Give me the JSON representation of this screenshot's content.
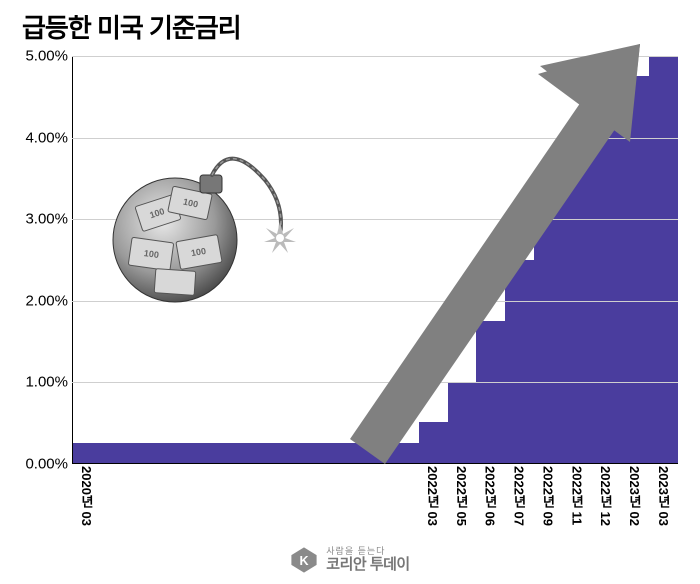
{
  "title": "급등한 미국 기준금리",
  "title_fontsize": 26,
  "title_color": "#000000",
  "chart": {
    "type": "bar",
    "background_color": "#ffffff",
    "bar_color": "#4a3d9e",
    "grid_color": "#cfcfcf",
    "axis_color": "#000000",
    "arrow_color": "#808080",
    "ylim": [
      0,
      5
    ],
    "yticks": [
      0,
      1,
      2,
      3,
      4,
      5
    ],
    "ytick_labels": [
      "0.00%",
      "1.00%",
      "2.00%",
      "3.00%",
      "4.00%",
      "5.00%"
    ],
    "ytick_fontsize": 15,
    "xtick_fontsize": 13,
    "bars": [
      {
        "label": "2020년 03",
        "value": 0.25,
        "show_label": true
      },
      {
        "label": "",
        "value": 0.25,
        "show_label": false
      },
      {
        "label": "",
        "value": 0.25,
        "show_label": false
      },
      {
        "label": "",
        "value": 0.25,
        "show_label": false
      },
      {
        "label": "",
        "value": 0.25,
        "show_label": false
      },
      {
        "label": "",
        "value": 0.25,
        "show_label": false
      },
      {
        "label": "",
        "value": 0.25,
        "show_label": false
      },
      {
        "label": "",
        "value": 0.25,
        "show_label": false
      },
      {
        "label": "",
        "value": 0.25,
        "show_label": false
      },
      {
        "label": "",
        "value": 0.25,
        "show_label": false
      },
      {
        "label": "",
        "value": 0.25,
        "show_label": false
      },
      {
        "label": "",
        "value": 0.25,
        "show_label": false
      },
      {
        "label": "2022년 03",
        "value": 0.5,
        "show_label": true
      },
      {
        "label": "2022년 05",
        "value": 1.0,
        "show_label": true
      },
      {
        "label": "2022년 06",
        "value": 1.75,
        "show_label": true
      },
      {
        "label": "2022년 07",
        "value": 2.5,
        "show_label": true
      },
      {
        "label": "2022년 09",
        "value": 3.25,
        "show_label": true
      },
      {
        "label": "2022년 11",
        "value": 4.0,
        "show_label": true
      },
      {
        "label": "2022년 12",
        "value": 4.5,
        "show_label": true
      },
      {
        "label": "2023년 02",
        "value": 4.75,
        "show_label": true
      },
      {
        "label": "2023년 03",
        "value": 5.0,
        "show_label": true
      }
    ]
  },
  "footer": {
    "tagline": "사람을 듣는다",
    "brand": "코리안 투데이",
    "logo_color": "#8a8a8a",
    "logo_letter": "K"
  }
}
